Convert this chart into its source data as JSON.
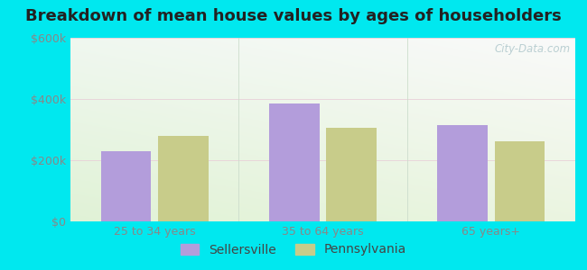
{
  "title": "Breakdown of mean house values by ages of householders",
  "categories": [
    "25 to 34 years",
    "35 to 64 years",
    "65 years+"
  ],
  "sellersville": [
    230000,
    385000,
    315000
  ],
  "pennsylvania": [
    280000,
    305000,
    262000
  ],
  "ylim": [
    0,
    600000
  ],
  "yticks": [
    0,
    200000,
    400000,
    600000
  ],
  "ytick_labels": [
    "$0",
    "$200k",
    "$400k",
    "$600k"
  ],
  "color_sellersville": "#b39ddb",
  "color_pennsylvania": "#c8cc8a",
  "legend_sellersville": "Sellersville",
  "legend_pennsylvania": "Pennsylvania",
  "background_outer": "#00e8ef",
  "watermark": "City-Data.com",
  "title_fontsize": 13,
  "tick_fontsize": 9,
  "legend_fontsize": 10,
  "bar_width": 0.3,
  "bar_gap": 0.04
}
